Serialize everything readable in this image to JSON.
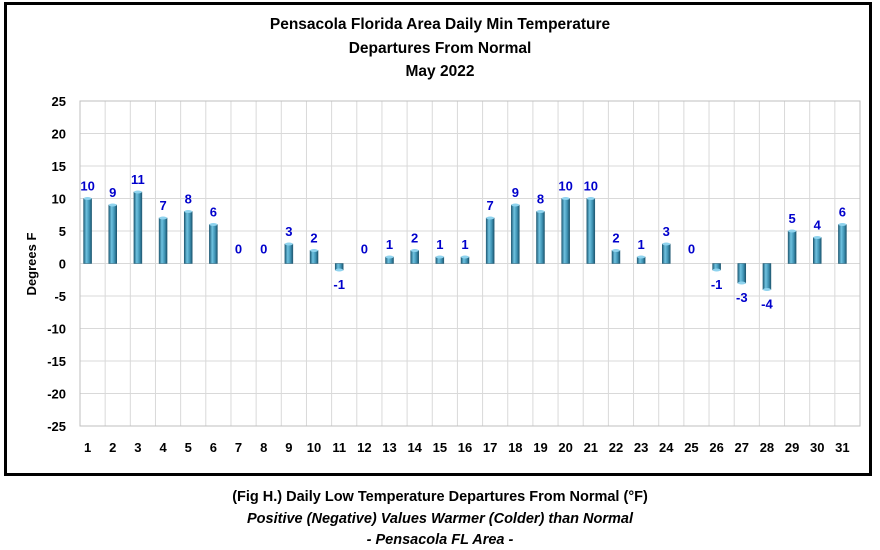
{
  "chart_data": {
    "type": "bar",
    "title": [
      "Pensacola Florida Area Daily Min Temperature",
      "Departures From Normal",
      "May 2022"
    ],
    "ylabel": "Degrees F",
    "xlabel": "",
    "ylim": [
      -25,
      25
    ],
    "yticks": [
      "25",
      "20",
      "15",
      "10",
      "5",
      "0",
      "-5",
      "-10",
      "-15",
      "-20",
      "-25"
    ],
    "grid": true,
    "categories": [
      "1",
      "2",
      "3",
      "4",
      "5",
      "6",
      "7",
      "8",
      "9",
      "10",
      "11",
      "12",
      "13",
      "14",
      "15",
      "16",
      "17",
      "18",
      "19",
      "20",
      "21",
      "22",
      "23",
      "24",
      "25",
      "26",
      "27",
      "28",
      "29",
      "30",
      "31"
    ],
    "values": [
      10,
      9,
      11,
      7,
      8,
      6,
      0,
      0,
      3,
      2,
      -1,
      0,
      1,
      2,
      1,
      1,
      7,
      9,
      8,
      10,
      10,
      2,
      1,
      3,
      0,
      -1,
      -3,
      -4,
      5,
      4,
      6
    ],
    "colors": {
      "bar": "#3f93b4",
      "label": "#0000cc",
      "grid": "#d9d9d9"
    }
  },
  "captions": {
    "line1": "(Fig H.) Daily Low Temperature Departures From Normal (°F)",
    "line2": "Positive (Negative) Values Warmer (Colder) than Normal",
    "line3": "- Pensacola FL Area -"
  }
}
